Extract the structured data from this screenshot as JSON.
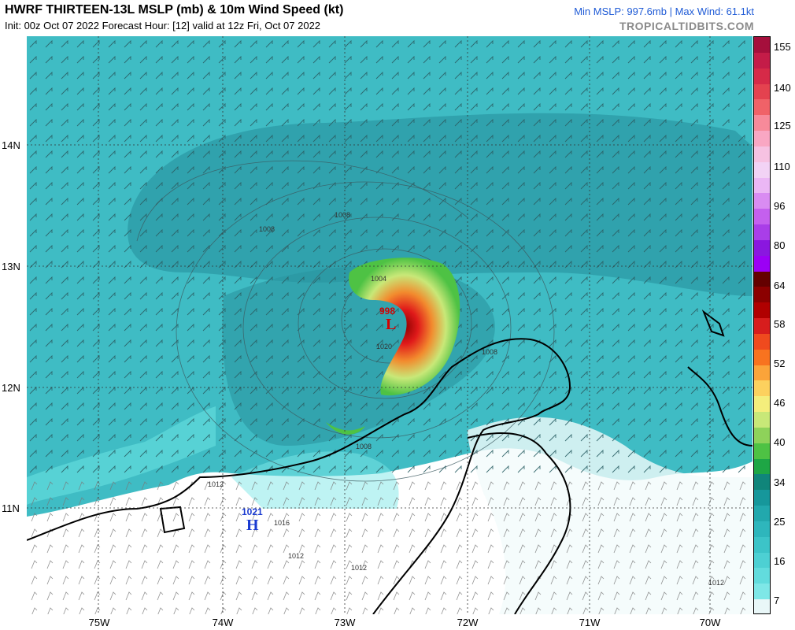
{
  "header": {
    "title": "HWRF THIRTEEN-13L MSLP (mb) & 10m Wind Speed (kt)",
    "subtitle": "Init: 00z Oct 07 2022   Forecast Hour: [12]   valid at 12z Fri, Oct 07 2022",
    "stats": "Min MSLP: 997.6mb | Max Wind: 61.1kt",
    "brand": "TROPICALTIDBITS.COM"
  },
  "map": {
    "lat_labels": [
      "14N",
      "13N",
      "12N",
      "11N"
    ],
    "lon_labels": [
      "75W",
      "74W",
      "73W",
      "72W",
      "71W",
      "70W"
    ],
    "low_center": {
      "pressure": "998",
      "letter": "L"
    },
    "high_center": {
      "pressure": "1021",
      "letter": "H"
    },
    "isobar_labels": [
      "1008",
      "1004",
      "1020",
      "1008",
      "1008",
      "1008",
      "1012",
      "1016",
      "1012",
      "1012",
      "1012"
    ],
    "colors": {
      "ocean": "#3fbcc4",
      "ocean_dark": "#2a9aa6",
      "land": "#ffffff",
      "coast": "#000000",
      "low": "#d40000",
      "high": "#1a3bd1"
    }
  },
  "colorbar": {
    "ticks": [
      "155",
      "140",
      "125",
      "110",
      "96",
      "80",
      "64",
      "58",
      "52",
      "46",
      "40",
      "34",
      "25",
      "16",
      "7"
    ],
    "segments": [
      "#a50f3c",
      "#c41c48",
      "#d62a48",
      "#e4424f",
      "#f06268",
      "#f78a9a",
      "#f9a7c3",
      "#f6c2e2",
      "#f2d3f5",
      "#ebb7f5",
      "#d98cf2",
      "#c460ee",
      "#a93ee8",
      "#8a17df",
      "#9b00f5",
      "#640000",
      "#8b0000",
      "#b00000",
      "#d71d1d",
      "#ef4a1e",
      "#f8731f",
      "#fba43a",
      "#fcd15e",
      "#f4ee7c",
      "#c8e878",
      "#8ed25a",
      "#4ec244",
      "#1ea645",
      "#10857a",
      "#16979b",
      "#22a8ad",
      "#2eb6bc",
      "#3cc4c8",
      "#4dd0d3",
      "#62dcdd",
      "#7ee7e7",
      "#e9f7f8"
    ]
  }
}
